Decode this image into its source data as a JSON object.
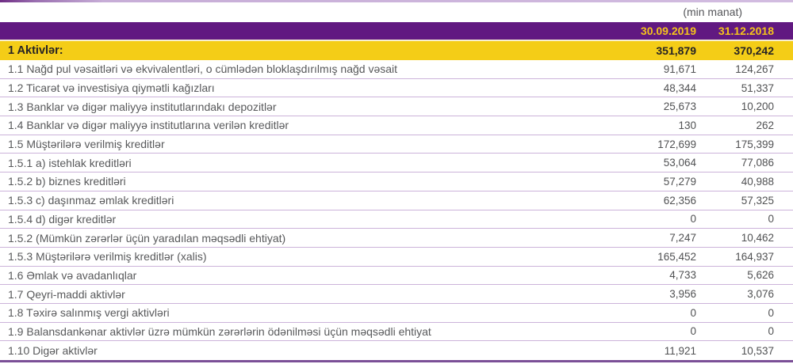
{
  "meta": {
    "unit_note": "(min manat)"
  },
  "table": {
    "columns": [
      "30.09.2019",
      "31.12.2018"
    ],
    "total_row": {
      "label": "1 Aktivlər:",
      "values": [
        "351,879",
        "370,242"
      ]
    },
    "rows": [
      {
        "label": "1.1 Nağd pul vəsaitləri və ekvivalentləri, o cümlədən bloklaşdırılmış nağd vəsait",
        "values": [
          "91,671",
          "124,267"
        ]
      },
      {
        "label": "1.2 Ticarət və investisiya qiymətli kağızları",
        "values": [
          "48,344",
          "51,337"
        ]
      },
      {
        "label": "1.3 Banklar və digər maliyyə institutlarındakı depozitlər",
        "values": [
          "25,673",
          "10,200"
        ]
      },
      {
        "label": "1.4 Banklar və digər maliyyə institutlarına verilən kreditlər",
        "values": [
          "130",
          "262"
        ]
      },
      {
        "label": "1.5 Müştərilərə verilmiş kreditlər",
        "values": [
          "172,699",
          "175,399"
        ]
      },
      {
        "label": "1.5.1 a) istehlak kreditləri",
        "values": [
          "53,064",
          "77,086"
        ]
      },
      {
        "label": "1.5.2 b) biznes kreditləri",
        "values": [
          "57,279",
          "40,988"
        ]
      },
      {
        "label": "1.5.3 c) daşınmaz əmlak kreditləri",
        "values": [
          "62,356",
          "57,325"
        ]
      },
      {
        "label": "1.5.4 d) digər kreditlər",
        "values": [
          "0",
          "0"
        ]
      },
      {
        "label": "1.5.2 (Mümkün zərərlər üçün yaradılan məqsədli ehtiyat)",
        "values": [
          "7,247",
          "10,462"
        ]
      },
      {
        "label": "1.5.3 Müştərilərə verilmiş kreditlər (xalis)",
        "values": [
          "165,452",
          "164,937"
        ]
      },
      {
        "label": "1.6 Əmlak və avadanlıqlar",
        "values": [
          "4,733",
          "5,626"
        ]
      },
      {
        "label": "1.7 Qeyri-maddi aktivlər",
        "values": [
          "3,956",
          "3,076"
        ]
      },
      {
        "label": "1.8 Təxirə salınmış vergi aktivləri",
        "values": [
          "0",
          "0"
        ]
      },
      {
        "label": "1.9 Balansdankənar aktivlər üzrə mümkün zərərlərin ödənilməsi üçün məqsədli ehtiyat",
        "values": [
          "0",
          "0"
        ]
      },
      {
        "label": "1.10 Digər aktivlər",
        "values": [
          "11,921",
          "10,537"
        ]
      }
    ]
  },
  "colors": {
    "header_purple": "#611981",
    "accent_yellow": "#f4cd17",
    "header_date_text": "#f5c31b",
    "body_text": "#58595b",
    "divider": "#ccb3da",
    "bottom_border": "#7b4f97"
  }
}
